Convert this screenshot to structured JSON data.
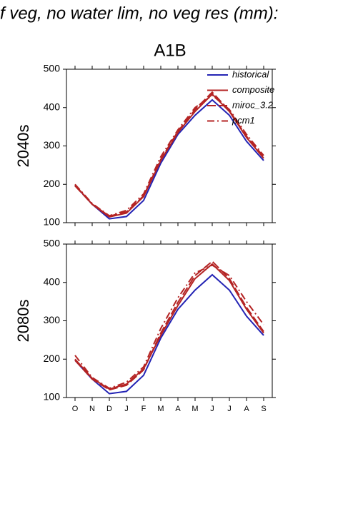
{
  "chart_data": [
    {
      "type": "line",
      "title": "f veg, no water lim, no veg res (mm):",
      "subtitle": "A1B",
      "ylabel": "2040s",
      "ylim": [
        100,
        500
      ],
      "yticks": [
        100,
        200,
        300,
        400,
        500
      ],
      "legend": "upper right",
      "series": [
        {
          "name": "historical",
          "color": "#2323b4",
          "style": "solid",
          "values": [
            197,
            148,
            110,
            116,
            158,
            255,
            330,
            380,
            420,
            380,
            312,
            262
          ]
        },
        {
          "name": "composite",
          "color": "#b42323",
          "style": "solid",
          "values": [
            198,
            148,
            115,
            125,
            168,
            262,
            335,
            390,
            435,
            390,
            322,
            268
          ]
        },
        {
          "name": "miroc_3.2",
          "color": "#b42323",
          "style": "dashed",
          "values": [
            196,
            148,
            117,
            128,
            170,
            265,
            338,
            395,
            440,
            392,
            325,
            272
          ]
        },
        {
          "name": "pcm1",
          "color": "#b42323",
          "style": "dashdot",
          "values": [
            200,
            150,
            118,
            132,
            175,
            272,
            342,
            400,
            432,
            395,
            330,
            275
          ]
        }
      ]
    },
    {
      "type": "line",
      "ylabel": "2080s",
      "categories": [
        "O",
        "N",
        "D",
        "J",
        "F",
        "M",
        "A",
        "M",
        "J",
        "J",
        "A",
        "S"
      ],
      "ylim": [
        100,
        500
      ],
      "yticks": [
        100,
        200,
        300,
        400,
        500
      ],
      "series": [
        {
          "color": "#2323b4",
          "style": "solid",
          "values": [
            197,
            148,
            110,
            116,
            158,
            255,
            330,
            380,
            420,
            380,
            312,
            262
          ]
        },
        {
          "color": "#b42323",
          "style": "solid",
          "values": [
            200,
            150,
            122,
            135,
            175,
            262,
            340,
            410,
            448,
            405,
            330,
            268
          ]
        },
        {
          "color": "#b42323",
          "style": "dashed",
          "values": [
            197,
            148,
            120,
            132,
            172,
            268,
            348,
            418,
            455,
            410,
            335,
            272
          ]
        },
        {
          "color": "#b42323",
          "style": "dashdot",
          "values": [
            210,
            152,
            124,
            140,
            180,
            280,
            360,
            425,
            445,
            418,
            350,
            290
          ]
        }
      ]
    }
  ]
}
